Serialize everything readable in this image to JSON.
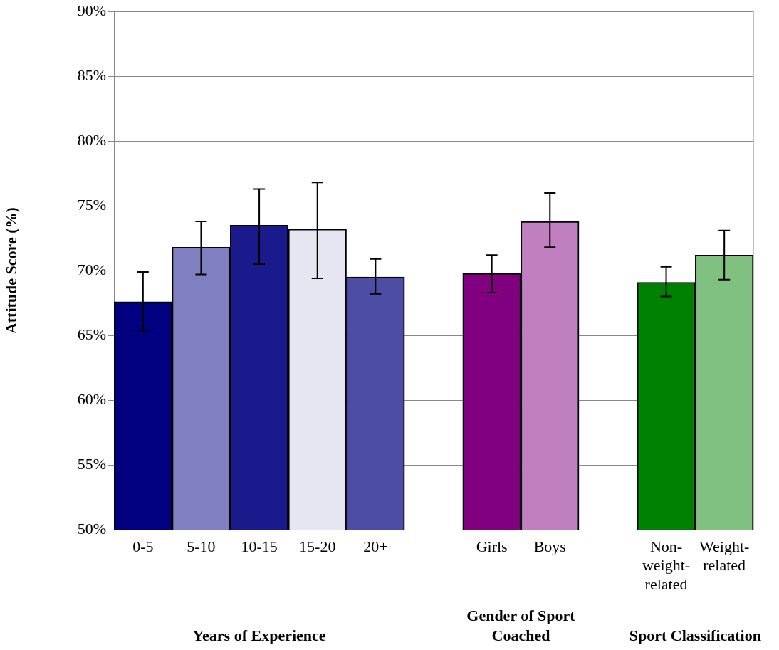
{
  "chart_data": {
    "type": "bar",
    "ylabel": "Attitude Score (%)",
    "categories": [
      "0-5",
      "5-10",
      "10-15",
      "15-20",
      "20+",
      null,
      "Girls",
      "Boys",
      null,
      "Non-weight-related",
      "Weight-related"
    ],
    "values": [
      67.6,
      71.8,
      73.5,
      73.2,
      69.5,
      null,
      69.8,
      73.8,
      null,
      69.1,
      71.2
    ],
    "errors": [
      [
        65.3,
        69.9
      ],
      [
        69.7,
        73.8
      ],
      [
        70.5,
        76.3
      ],
      [
        69.4,
        76.8
      ],
      [
        68.2,
        70.9
      ],
      null,
      [
        68.3,
        71.2
      ],
      [
        71.8,
        76.0
      ],
      null,
      [
        68.0,
        70.3
      ],
      [
        69.3,
        73.1
      ]
    ],
    "colors": [
      "#000080",
      "#8080c0",
      "#1a1a8c",
      "#e6e6f3",
      "#4d4da6",
      "#ffffff",
      "#800080",
      "#c080c0",
      "#ffffff",
      "#008000",
      "#80c080"
    ],
    "ylim": [
      50,
      90
    ],
    "yticks": [
      {
        "value": 50,
        "label": "50%"
      },
      {
        "value": 55,
        "label": "55%"
      },
      {
        "value": 60,
        "label": "60%"
      },
      {
        "value": 65,
        "label": "65%"
      },
      {
        "value": 70,
        "label": "70%"
      },
      {
        "value": 75,
        "label": "75%"
      },
      {
        "value": 80,
        "label": "80%"
      },
      {
        "value": 85,
        "label": "85%"
      },
      {
        "value": 90,
        "label": "90%"
      }
    ],
    "grid": "y",
    "legend": false,
    "annotations": [
      "Years of Experience",
      "Gender of Sport Coached",
      "Sport Classification"
    ]
  }
}
